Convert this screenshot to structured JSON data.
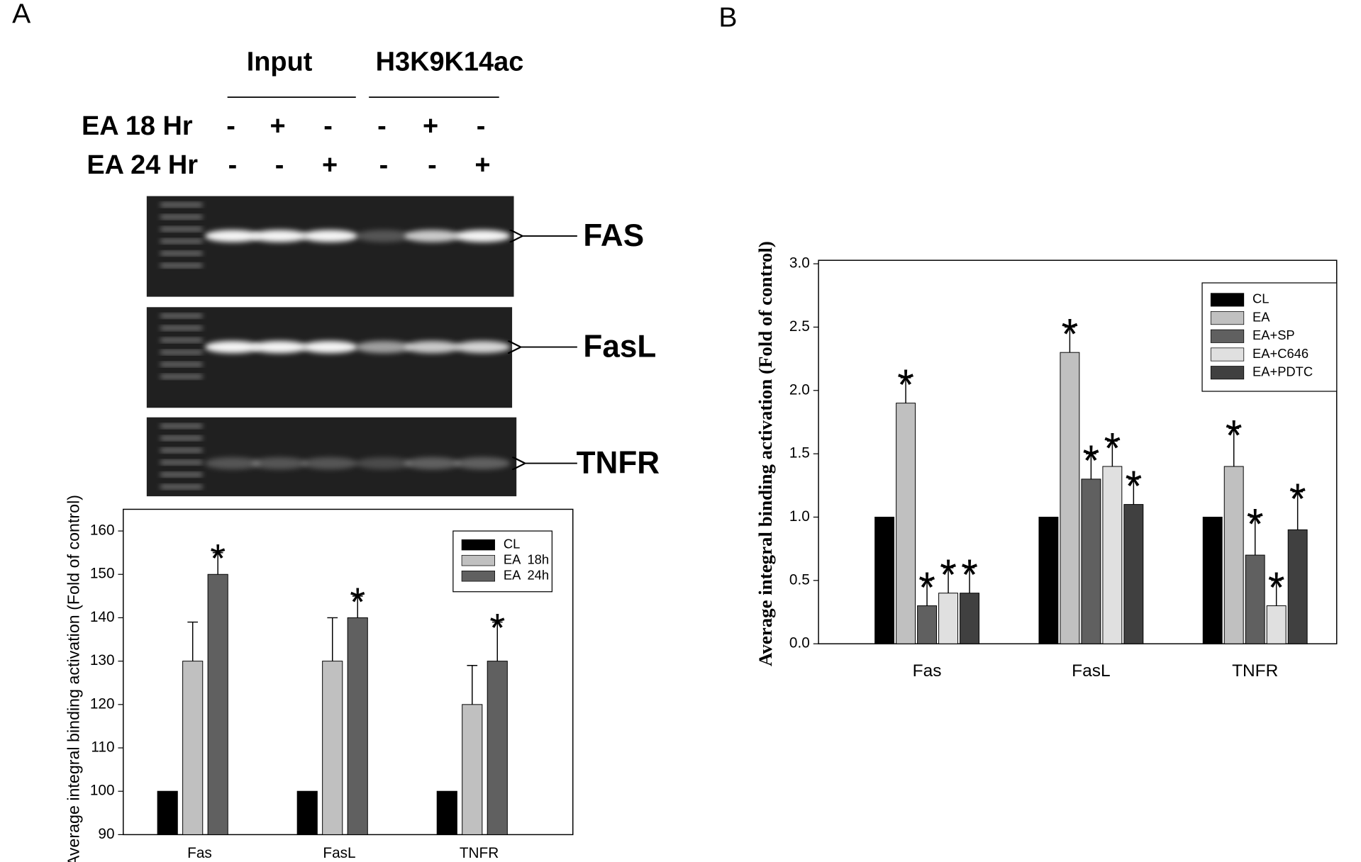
{
  "panel_labels": [
    "A",
    "B"
  ],
  "gel": {
    "headers": [
      "Input",
      "H3K9K14ac"
    ],
    "rows": [
      {
        "label": "EA 18 Hr",
        "signs": [
          "-",
          "+",
          "-",
          "-",
          "+",
          "-"
        ]
      },
      {
        "label": "EA 24 Hr",
        "signs": [
          "-",
          "-",
          "+",
          "-",
          "-",
          "+"
        ]
      }
    ],
    "bands": [
      "FAS",
      "FasL",
      "TNFR"
    ]
  },
  "chart_data": [
    {
      "type": "bar",
      "y_label": "Average integral binding activation (Fold of control)",
      "categories": [
        "Fas",
        "FasL",
        "TNFR"
      ],
      "series": [
        {
          "name": "CL",
          "color": "#000000",
          "values": [
            100,
            100,
            100
          ]
        },
        {
          "name": "EA  18h",
          "color": "#c0c0c0",
          "values": [
            130,
            130,
            120
          ],
          "errors": [
            9,
            10,
            9
          ]
        },
        {
          "name": "EA  24h",
          "color": "#606060",
          "values": [
            150,
            140,
            130
          ],
          "errors": [
            5,
            5,
            9
          ],
          "annotations": [
            "*",
            "*",
            "*"
          ]
        }
      ],
      "ylim": [
        90,
        165
      ],
      "yticks": [
        90,
        100,
        110,
        120,
        130,
        140,
        150,
        160
      ],
      "legend": "upper right"
    },
    {
      "type": "bar",
      "y_label": "Average integral binding activation (Fold of control)",
      "categories": [
        "Fas",
        "FasL",
        "TNFR"
      ],
      "series": [
        {
          "name": "CL",
          "color": "#000000",
          "values": [
            1,
            1,
            1
          ]
        },
        {
          "name": "EA",
          "color": "#c0c0c0",
          "values": [
            1.9,
            2.3,
            1.4
          ],
          "errors": [
            0.2,
            0.2,
            0.3
          ],
          "annotations": [
            "*",
            "*",
            "*"
          ]
        },
        {
          "name": "EA+SP",
          "color": "#606060",
          "values": [
            0.3,
            1.3,
            0.7
          ],
          "errors": [
            0.2,
            0.2,
            0.3
          ],
          "annotations": [
            "*",
            "*",
            "*"
          ]
        },
        {
          "name": "EA+C646",
          "color": "#e0e0e0",
          "values": [
            0.4,
            1.4,
            0.3
          ],
          "errors": [
            0.2,
            0.2,
            0.2
          ],
          "annotations": [
            "*",
            "*",
            "*"
          ]
        },
        {
          "name": "EA+PDTC",
          "color": "#404040",
          "values": [
            0.4,
            1.1,
            0.9
          ],
          "errors": [
            0.2,
            0.2,
            0.3
          ],
          "annotations": [
            "*",
            "*",
            "*"
          ]
        }
      ],
      "ylim": [
        0,
        3
      ],
      "yticks": [
        {
          "value": 0,
          "label": "0.0"
        },
        {
          "value": 0.5,
          "label": "0.5"
        },
        {
          "value": 1,
          "label": "1.0"
        },
        {
          "value": 1.5,
          "label": "1.5"
        },
        {
          "value": 2,
          "label": "2.0"
        },
        {
          "value": 2.5,
          "label": "2.5"
        },
        {
          "value": 3,
          "label": "3.0"
        }
      ],
      "legend": "upper right"
    }
  ]
}
